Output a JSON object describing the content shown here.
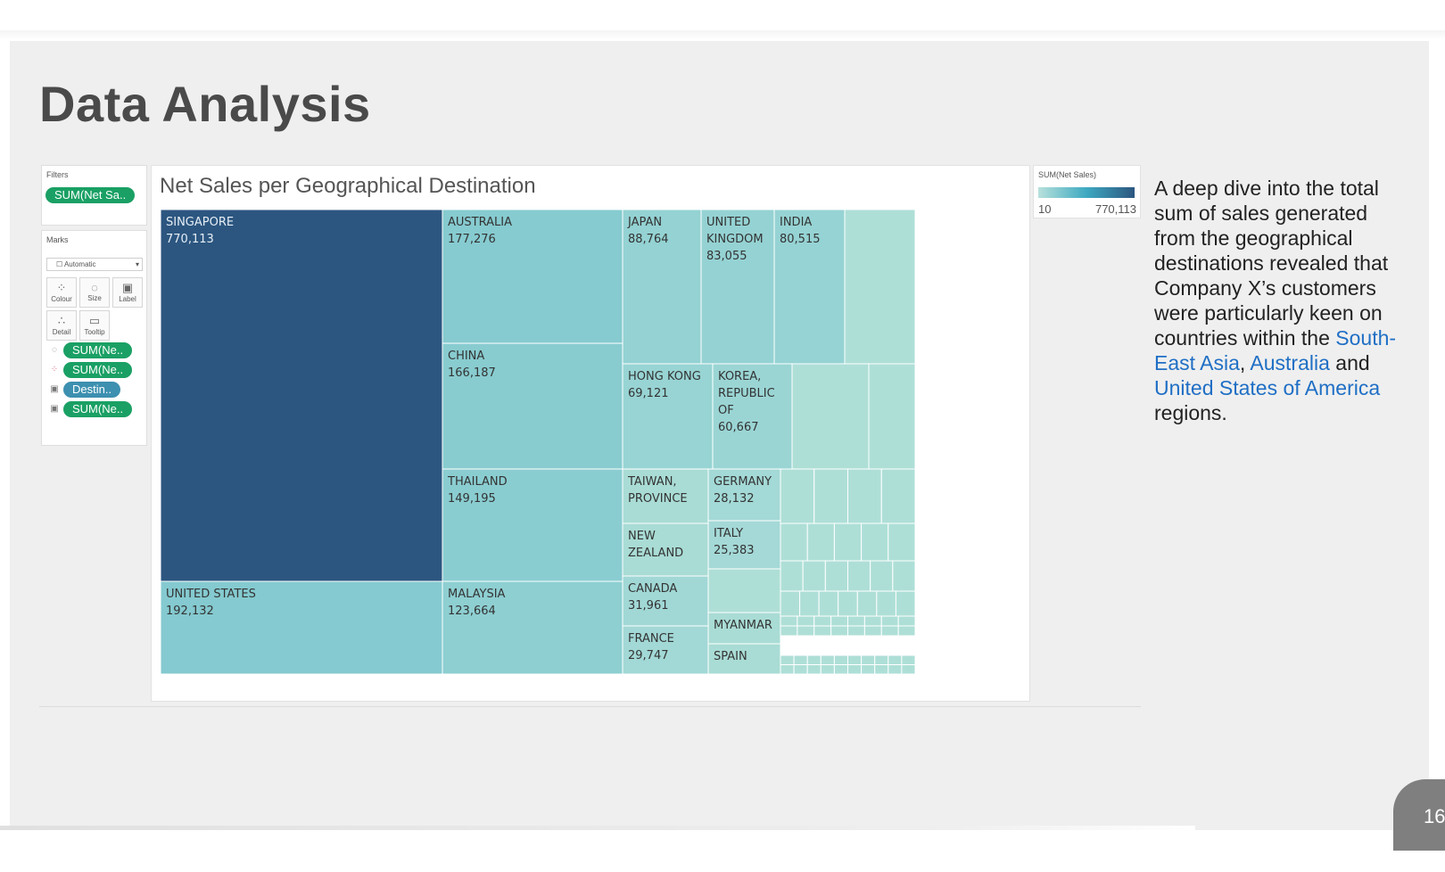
{
  "slide": {
    "title": "Data Analysis",
    "page_number": "16",
    "description": [
      {
        "text": "A deep dive into the total sum of sales generated from the geographical destinations revealed that Company X’s customers were particularly keen on countries within the ",
        "highlight": false
      },
      {
        "text": "South-East Asia",
        "highlight": true
      },
      {
        "text": ", ",
        "highlight": false
      },
      {
        "text": "Australia",
        "highlight": true
      },
      {
        "text": " and ",
        "highlight": false
      },
      {
        "text": "United States of America",
        "highlight": true
      },
      {
        "text": " regions.",
        "highlight": false
      }
    ]
  },
  "tableau": {
    "filters_label": "Filters",
    "filter_pill": "SUM(Net Sa..",
    "marks_label": "Marks",
    "mark_type": "Automatic",
    "mark_buttons": [
      "Colour",
      "Size",
      "Label",
      "Detail",
      "Tooltip"
    ],
    "mark_shelf": [
      "SUM(Ne..",
      "SUM(Ne..",
      "Destin..",
      "SUM(Ne.."
    ],
    "legend_title": "SUM(Net Sales)",
    "legend_min": "10",
    "legend_max": "770,113"
  },
  "chart_data": {
    "type": "treemap",
    "title": "Net Sales per Geographical Destination",
    "measure": "SUM(Net Sales)",
    "color_range": [
      "#b7e1dc",
      "#2c5680"
    ],
    "labeled": [
      {
        "name": "SINGAPORE",
        "value": 770113
      },
      {
        "name": "UNITED STATES",
        "value": 192132
      },
      {
        "name": "AUSTRALIA",
        "value": 177276
      },
      {
        "name": "CHINA",
        "value": 166187
      },
      {
        "name": "THAILAND",
        "value": 149195
      },
      {
        "name": "MALAYSIA",
        "value": 123664
      },
      {
        "name": "JAPAN",
        "value": 88764
      },
      {
        "name": "UNITED KINGDOM",
        "value": 83055
      },
      {
        "name": "INDIA",
        "value": 80515
      },
      {
        "name": "HONG KONG",
        "value": 69121
      },
      {
        "name": "KOREA, REPUBLIC OF",
        "value": 60667
      },
      {
        "name": "TAIWAN, PROVINCE",
        "value": null
      },
      {
        "name": "NEW ZEALAND",
        "value": null
      },
      {
        "name": "CANADA",
        "value": 31961
      },
      {
        "name": "FRANCE",
        "value": 29747
      },
      {
        "name": "GERMANY",
        "value": 28132
      },
      {
        "name": "ITALY",
        "value": 25383
      },
      {
        "name": "MYANMAR",
        "value": null
      },
      {
        "name": "SPAIN",
        "value": null
      }
    ]
  }
}
